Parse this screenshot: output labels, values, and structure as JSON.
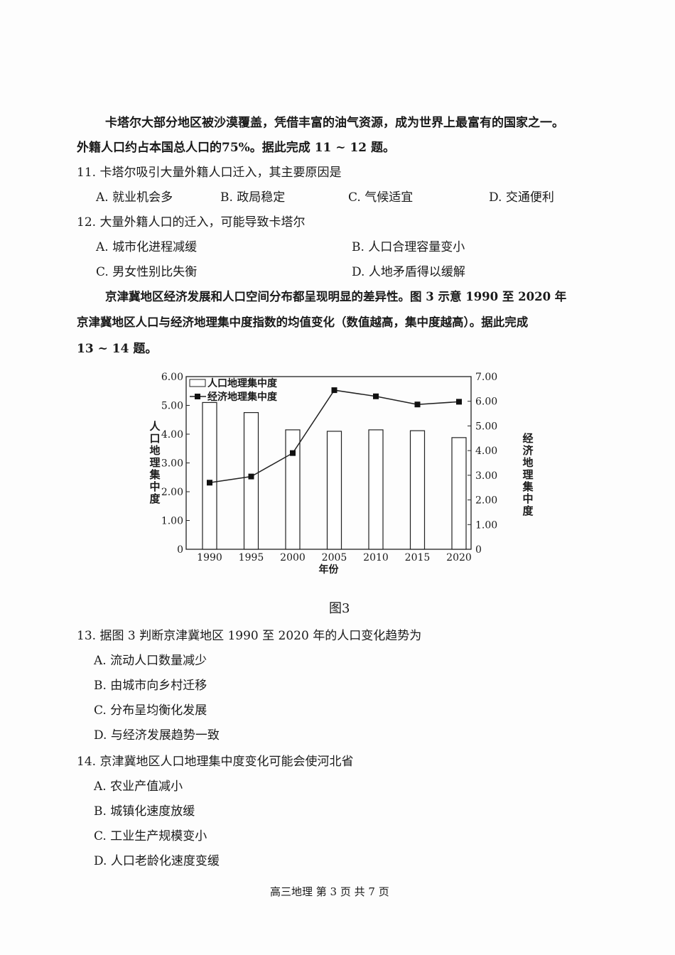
{
  "intro1": {
    "line1": "卡塔尔大部分地区被沙漠覆盖，凭借丰富的油气资源，成为世界上最富有的国家之一。",
    "line2": "外籍人口约占本国总人口的75%。据此完成 11 ~ 12 题。"
  },
  "q11": {
    "stem": "11.  卡塔尔吸引大量外籍人口迁入，其主要原因是",
    "A": "A.  就业机会多",
    "B": "B.  政局稳定",
    "C": "C.  气候适宜",
    "D": "D.  交通便利"
  },
  "q12": {
    "stem": "12.  大量外籍人口的迁入，可能导致卡塔尔",
    "A": "A.  城市化进程减缓",
    "B": "B.  人口合理容量变小",
    "C": "C.  男女性别比失衡",
    "D": "D.  人地矛盾得以缓解"
  },
  "intro2": {
    "line1": "京津冀地区经济发展和人口空间分布都呈现明显的差异性。图 3 示意 1990 至 2020 年",
    "line2": "京津冀地区人口与经济地理集中度指数的均值变化（数值越高，集中度越高）。据此完成",
    "line3": "13 ~ 14 题。"
  },
  "chart_data": {
    "type": "bar+line",
    "categories": [
      "1990",
      "1995",
      "2000",
      "2005",
      "2010",
      "2015",
      "2020"
    ],
    "series": [
      {
        "name": "人口地理集中度",
        "type": "bar",
        "axis": "left",
        "values": [
          5.1,
          4.75,
          4.15,
          4.1,
          4.15,
          4.12,
          3.88
        ]
      },
      {
        "name": "经济地理集中度",
        "type": "line",
        "axis": "right",
        "values": [
          2.7,
          2.95,
          3.9,
          6.45,
          6.2,
          5.87,
          5.98
        ]
      }
    ],
    "xlabel": "年份",
    "ylabel_left": "人口地理集中度",
    "ylabel_right": "经济地理集中度",
    "ylim_left": [
      0,
      6
    ],
    "ylim_right": [
      0,
      7
    ],
    "yticks_left": [
      "0",
      "1.00",
      "2.00",
      "3.00",
      "4.00",
      "5.00",
      "6.00"
    ],
    "yticks_right": [
      "0",
      "1.00",
      "2.00",
      "3.00",
      "4.00",
      "5.00",
      "6.00",
      "7.00"
    ],
    "legend": "top-left",
    "grid": false,
    "caption": "图3"
  },
  "q13": {
    "stem": "13.  据图 3 判断京津冀地区 1990 至 2020 年的人口变化趋势为",
    "A": "A.  流动人口数量减少",
    "B": "B.  由城市向乡村迁移",
    "C": "C.  分布呈均衡化发展",
    "D": "D.  与经济发展趋势一致"
  },
  "q14": {
    "stem": "14.  京津冀地区人口地理集中度变化可能会使河北省",
    "A": "A.  农业产值减小",
    "B": "B.  城镇化速度放缓",
    "C": "C.  工业生产规模变小",
    "D": "D.  人口老龄化速度变缓"
  },
  "footer": "高三地理  第 3 页  共 7 页"
}
